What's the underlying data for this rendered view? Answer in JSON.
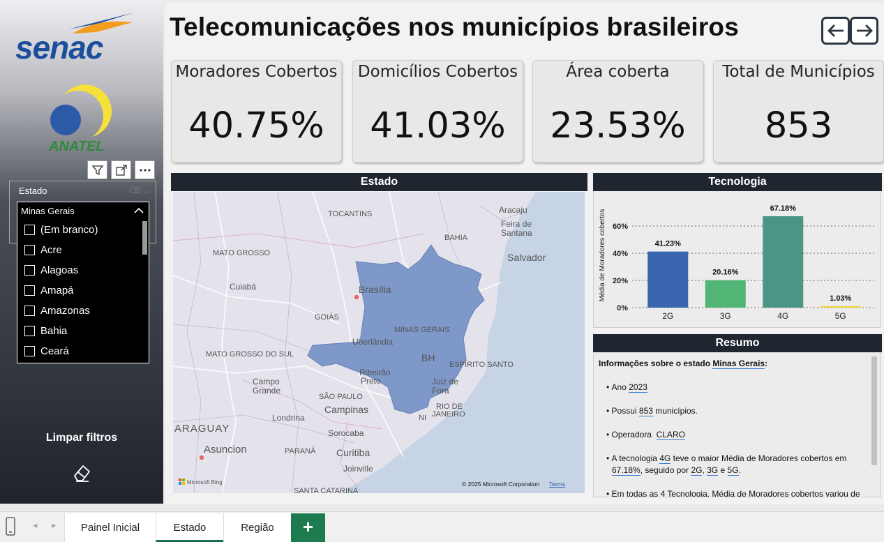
{
  "title": "Telecomunicações nos municípios brasileiros",
  "logos": {
    "senac": "Senac",
    "anatel": "ANATEL"
  },
  "kpis": [
    {
      "label": "Moradores Cobertos",
      "value": "40.75%"
    },
    {
      "label": "Domicílios Cobertos",
      "value": "41.03%"
    },
    {
      "label": "Área coberta",
      "value": "23.53%"
    },
    {
      "label": "Total de Municípios",
      "value": "853"
    }
  ],
  "slicer": {
    "title": "Estado",
    "selected": "Minas Gerais",
    "options": [
      "(Em branco)",
      "Acre",
      "Alagoas",
      "Amapá",
      "Amazonas",
      "Bahia",
      "Ceará"
    ]
  },
  "limpar": "Limpar filtros",
  "map": {
    "title": "Estado",
    "labels": {
      "tocantins": "TOCANTINS",
      "aracaju": "Aracaju",
      "feira": "Feira de",
      "santana": "Santana",
      "bahia": "BAHIA",
      "salvador": "Salvador",
      "mato_grosso": "MATO GROSSO",
      "cuiaba": "Cuiabá",
      "brasilia": "Brasília",
      "goias": "GOIÁS",
      "minas": "MINAS GERAIS",
      "uberlandia": "Uberlândia",
      "ms": "MATO GROSSO DO SUL",
      "bh": "BH",
      "es": "ESPÍRITO SANTO",
      "ribeirao1": "Ribeirão",
      "ribeirao2": "Preto",
      "juiz1": "Juiz de",
      "juiz2": "Fora",
      "campo1": "Campo",
      "campo2": "Grande",
      "sp": "SÃO PAULO",
      "rio1": "RIO DE",
      "rio2": "JANEIRO",
      "campinas": "Campinas",
      "londrina": "Londrina",
      "paraguay": "ARAGUAY",
      "sorocaba": "Sorocaba",
      "asuncion": "Asuncion",
      "parana": "PARANÁ",
      "curitiba": "Curitiba",
      "joinville": "Joinville",
      "sc": "SANTA CATARINA",
      "ni": "NI"
    },
    "bing": "Microsoft Bing",
    "copyright": "© 2025 Microsoft Corporation",
    "terms": "Terms"
  },
  "tecnologia_title": "Tecnologia",
  "chart_data": {
    "type": "bar",
    "categories": [
      "2G",
      "3G",
      "4G",
      "5G"
    ],
    "values": [
      41.23,
      20.16,
      67.18,
      1.03
    ],
    "data_labels": [
      "41.23%",
      "20.16%",
      "67.18%",
      "1.03%"
    ],
    "ylabel": "Média de Moradores cobertos",
    "yticks": [
      "0%",
      "20%",
      "40%",
      "60%"
    ],
    "ylim": [
      0,
      70
    ],
    "grid": true,
    "colors": [
      "#3a66b0",
      "#52b576",
      "#4a9584",
      "#f0d437"
    ]
  },
  "resumo": {
    "title": "Resumo",
    "heading": "Informações sobre o estado",
    "state": "Minas Gerais",
    "ano_label": "Ano",
    "ano": "2023",
    "possui": "Possui",
    "municipios_count": "853",
    "municipios_word": "municípios.",
    "operadora_label": "Operadora",
    "operadora": "CLARO",
    "tec_intro": "A tecnologia",
    "tec_top": "4G",
    "tec_mid": "teve o maior Média de Moradores cobertos em",
    "tec_top_val": "67.18%",
    "seguido": ", seguido por",
    "t2": "2G",
    "t3": "3G",
    "e": "e",
    "t5": "5G",
    "last": "Em todas as 4 Tecnologia, Média de Moradores cobertos variou de"
  },
  "tabs": [
    "Painel Inicial",
    "Estado",
    "Região"
  ],
  "add_tab": "+"
}
